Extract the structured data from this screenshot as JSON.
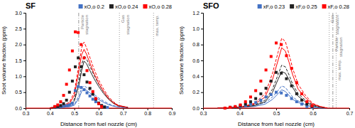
{
  "chart_data": [
    {
      "type": "line",
      "title": "SF",
      "xlabel": "Distance from fuel nozzle (cm)",
      "ylabel": "Soot volume fraction (ppm)",
      "xlim": [
        0.3,
        0.9
      ],
      "ylim": [
        0,
        3.0
      ],
      "xticks": [
        0.3,
        0.4,
        0.5,
        0.6,
        0.7,
        0.8,
        0.9
      ],
      "yticks": [
        {
          "value": 0,
          "label": "0.0"
        },
        0.5,
        {
          "value": 1.0,
          "label": "1.0"
        },
        1.5,
        {
          "value": 2.0,
          "label": "2.0"
        },
        2.5,
        {
          "value": 3.0,
          "label": "3.0"
        }
      ],
      "grid": false,
      "legend": "upper right",
      "series": [
        {
          "name": "xO,o 0.2",
          "type": "scatter",
          "marker": "square",
          "color": "#4472C4",
          "x": [
            0.42,
            0.432,
            0.444,
            0.456,
            0.468,
            0.48,
            0.492,
            0.504,
            0.516,
            0.528,
            0.54,
            0.552,
            0.564,
            0.576,
            0.588,
            0.6,
            0.612,
            0.624,
            0.636
          ],
          "values": [
            0.02,
            0.03,
            0.04,
            0.06,
            0.08,
            0.1,
            0.15,
            0.55,
            0.68,
            0.65,
            0.58,
            0.48,
            0.38,
            0.28,
            0.2,
            0.14,
            0.08,
            0.04,
            0.02
          ]
        },
        {
          "type": "line",
          "line_style": "dashed",
          "color": "#4472C4",
          "x": [
            0.4,
            0.44,
            0.48,
            0.5,
            0.52,
            0.53,
            0.54,
            0.55,
            0.56,
            0.58,
            0.6,
            0.62,
            0.64,
            0.66,
            0.68,
            0.72
          ],
          "values": [
            0.01,
            0.02,
            0.05,
            0.12,
            0.4,
            0.62,
            0.7,
            0.65,
            0.58,
            0.44,
            0.32,
            0.22,
            0.14,
            0.08,
            0.04,
            0.01
          ]
        },
        {
          "type": "line",
          "line_style": "solid",
          "color": "#4472C4",
          "x": [
            0.4,
            0.44,
            0.48,
            0.5,
            0.52,
            0.53,
            0.54,
            0.55,
            0.56,
            0.58,
            0.6,
            0.62,
            0.64,
            0.66,
            0.68,
            0.72
          ],
          "values": [
            0.01,
            0.02,
            0.04,
            0.09,
            0.32,
            0.52,
            0.6,
            0.56,
            0.5,
            0.38,
            0.27,
            0.18,
            0.11,
            0.06,
            0.03,
            0.01
          ]
        },
        {
          "name": "xO,o 0.24",
          "type": "scatter",
          "marker": "square",
          "color": "#222222",
          "x": [
            0.42,
            0.432,
            0.444,
            0.456,
            0.468,
            0.48,
            0.492,
            0.504,
            0.516,
            0.528,
            0.54,
            0.552,
            0.564,
            0.576,
            0.588,
            0.6,
            0.612,
            0.624
          ],
          "values": [
            0.03,
            0.05,
            0.08,
            0.14,
            0.25,
            0.5,
            0.85,
            1.3,
            1.58,
            1.3,
            1.05,
            0.82,
            0.62,
            0.44,
            0.28,
            0.16,
            0.08,
            0.03
          ]
        },
        {
          "type": "line",
          "line_style": "dashed",
          "color": "#222222",
          "x": [
            0.4,
            0.44,
            0.48,
            0.5,
            0.52,
            0.53,
            0.54,
            0.55,
            0.56,
            0.58,
            0.6,
            0.62,
            0.64,
            0.66,
            0.68,
            0.72
          ],
          "values": [
            0.01,
            0.03,
            0.1,
            0.28,
            0.9,
            1.35,
            1.65,
            1.55,
            1.38,
            1.05,
            0.76,
            0.52,
            0.32,
            0.18,
            0.08,
            0.02
          ]
        },
        {
          "type": "line",
          "line_style": "solid",
          "color": "#222222",
          "x": [
            0.4,
            0.44,
            0.48,
            0.5,
            0.52,
            0.53,
            0.54,
            0.55,
            0.56,
            0.58,
            0.6,
            0.62,
            0.64,
            0.66,
            0.68,
            0.72
          ],
          "values": [
            0.01,
            0.02,
            0.08,
            0.22,
            0.75,
            1.18,
            1.48,
            1.4,
            1.24,
            0.94,
            0.68,
            0.46,
            0.28,
            0.15,
            0.07,
            0.02
          ]
        },
        {
          "name": "xO,o 0.28",
          "type": "scatter",
          "marker": "square",
          "color": "#FF0000",
          "x": [
            0.42,
            0.432,
            0.444,
            0.456,
            0.468,
            0.48,
            0.492,
            0.504,
            0.516,
            0.528,
            0.54,
            0.552,
            0.564,
            0.576,
            0.588,
            0.6,
            0.612
          ],
          "values": [
            0.05,
            0.1,
            0.2,
            0.4,
            0.75,
            1.2,
            1.8,
            2.4,
            2.38,
            2.0,
            1.58,
            1.18,
            0.8,
            0.52,
            0.3,
            0.14,
            0.05
          ]
        },
        {
          "type": "line",
          "line_style": "dashed",
          "color": "#FF0000",
          "x": [
            0.4,
            0.44,
            0.48,
            0.5,
            0.52,
            0.53,
            0.54,
            0.55,
            0.56,
            0.58,
            0.6,
            0.62,
            0.64,
            0.66,
            0.68,
            0.72
          ],
          "values": [
            0.01,
            0.05,
            0.18,
            0.5,
            1.42,
            1.9,
            2.08,
            1.9,
            1.68,
            1.24,
            0.88,
            0.6,
            0.36,
            0.2,
            0.09,
            0.02
          ]
        },
        {
          "type": "line",
          "line_style": "solid",
          "color": "#FF0000",
          "x": [
            0.4,
            0.44,
            0.48,
            0.5,
            0.52,
            0.53,
            0.54,
            0.55,
            0.56,
            0.58,
            0.6,
            0.62,
            0.64,
            0.66,
            0.68,
            0.72
          ],
          "values": [
            0.01,
            0.04,
            0.14,
            0.4,
            1.22,
            1.68,
            1.85,
            1.7,
            1.5,
            1.1,
            0.78,
            0.52,
            0.3,
            0.16,
            0.07,
            0.02
          ]
        }
      ],
      "annotations": [
        {
          "x": 0.518,
          "text": "Particle\nstagnation",
          "line_style": "dashdot"
        },
        {
          "x": 0.685,
          "text": "Gas\nstagnation",
          "line_style": "dotted"
        },
        {
          "x": 0.825,
          "text": "max. temp.",
          "line_style": "dotted"
        }
      ],
      "reference_lines": [
        {
          "y": 0,
          "color": "#FF0000"
        }
      ]
    },
    {
      "type": "line",
      "title": "SFO",
      "xlabel": "Distance from fuel nozzle (cm)",
      "ylabel": "Soot volume fraction (ppm)",
      "xlim": [
        0.3,
        0.7
      ],
      "ylim": [
        0,
        1.2
      ],
      "xticks": [
        0.3,
        0.4,
        0.5,
        0.6,
        0.7
      ],
      "yticks": [
        {
          "value": 0,
          "label": "0.0"
        },
        0.2,
        0.4,
        0.6,
        0.8,
        {
          "value": 1.0,
          "label": "1.0"
        },
        1.2
      ],
      "grid": false,
      "legend": "upper right",
      "series": [
        {
          "name": "xF,o 0.23",
          "type": "scatter",
          "marker": "square",
          "color": "#4472C4",
          "x": [
            0.36,
            0.374,
            0.388,
            0.402,
            0.416,
            0.43,
            0.444,
            0.458,
            0.472,
            0.486,
            0.5,
            0.514,
            0.528,
            0.542,
            0.556,
            0.57,
            0.584,
            0.598
          ],
          "values": [
            0.0,
            0.01,
            0.01,
            0.02,
            0.03,
            0.05,
            0.07,
            0.1,
            0.14,
            0.17,
            0.2,
            0.19,
            0.16,
            0.12,
            0.08,
            0.05,
            0.02,
            0.01
          ]
        },
        {
          "type": "line",
          "line_style": "dashed",
          "color": "#4472C4",
          "x": [
            0.34,
            0.4,
            0.44,
            0.47,
            0.49,
            0.505,
            0.515,
            0.525,
            0.535,
            0.545,
            0.56,
            0.58,
            0.6,
            0.62,
            0.64
          ],
          "values": [
            0.0,
            0.01,
            0.03,
            0.07,
            0.14,
            0.22,
            0.28,
            0.26,
            0.2,
            0.14,
            0.09,
            0.05,
            0.02,
            0.01,
            0.0
          ]
        },
        {
          "type": "line",
          "line_style": "solid",
          "color": "#4472C4",
          "x": [
            0.34,
            0.4,
            0.44,
            0.47,
            0.49,
            0.505,
            0.515,
            0.525,
            0.535,
            0.545,
            0.56,
            0.58,
            0.6,
            0.62,
            0.64
          ],
          "values": [
            0.0,
            0.01,
            0.02,
            0.05,
            0.11,
            0.18,
            0.23,
            0.21,
            0.16,
            0.11,
            0.07,
            0.04,
            0.01,
            0.0,
            0.0
          ]
        },
        {
          "name": "xF,o 0.25",
          "type": "scatter",
          "marker": "square",
          "color": "#222222",
          "x": [
            0.36,
            0.374,
            0.388,
            0.402,
            0.416,
            0.43,
            0.444,
            0.458,
            0.472,
            0.486,
            0.5,
            0.514,
            0.528,
            0.542,
            0.556,
            0.57,
            0.584,
            0.598
          ],
          "values": [
            0.0,
            0.01,
            0.01,
            0.03,
            0.05,
            0.08,
            0.12,
            0.18,
            0.25,
            0.34,
            0.45,
            0.44,
            0.37,
            0.28,
            0.18,
            0.1,
            0.05,
            0.02
          ]
        },
        {
          "type": "line",
          "line_style": "dashed",
          "color": "#222222",
          "x": [
            0.34,
            0.4,
            0.44,
            0.47,
            0.49,
            0.505,
            0.515,
            0.525,
            0.535,
            0.545,
            0.56,
            0.58,
            0.6,
            0.62,
            0.64
          ],
          "values": [
            0.0,
            0.01,
            0.04,
            0.1,
            0.24,
            0.42,
            0.54,
            0.52,
            0.42,
            0.3,
            0.18,
            0.1,
            0.04,
            0.02,
            0.0
          ]
        },
        {
          "type": "line",
          "line_style": "solid",
          "color": "#222222",
          "x": [
            0.34,
            0.4,
            0.44,
            0.47,
            0.49,
            0.505,
            0.515,
            0.525,
            0.535,
            0.545,
            0.56,
            0.58,
            0.6,
            0.62,
            0.64
          ],
          "values": [
            0.0,
            0.01,
            0.03,
            0.08,
            0.2,
            0.36,
            0.46,
            0.44,
            0.36,
            0.26,
            0.15,
            0.08,
            0.03,
            0.01,
            0.0
          ]
        },
        {
          "name": "xF,o 0.28",
          "type": "scatter",
          "marker": "square",
          "color": "#FF0000",
          "x": [
            0.36,
            0.374,
            0.388,
            0.402,
            0.416,
            0.43,
            0.444,
            0.458,
            0.472,
            0.486,
            0.5,
            0.514,
            0.528,
            0.542,
            0.556,
            0.57,
            0.584,
            0.598
          ],
          "values": [
            0.0,
            0.01,
            0.02,
            0.04,
            0.08,
            0.14,
            0.22,
            0.34,
            0.48,
            0.65,
            0.82,
            0.8,
            0.66,
            0.5,
            0.32,
            0.18,
            0.08,
            0.03
          ]
        },
        {
          "type": "line",
          "line_style": "dashed",
          "color": "#FF0000",
          "x": [
            0.34,
            0.4,
            0.44,
            0.47,
            0.49,
            0.505,
            0.515,
            0.525,
            0.535,
            0.545,
            0.56,
            0.58,
            0.6,
            0.62,
            0.64
          ],
          "values": [
            0.0,
            0.01,
            0.06,
            0.18,
            0.44,
            0.7,
            0.88,
            0.84,
            0.68,
            0.5,
            0.3,
            0.16,
            0.06,
            0.02,
            0.0
          ]
        },
        {
          "type": "line",
          "line_style": "solid",
          "color": "#FF0000",
          "x": [
            0.34,
            0.4,
            0.44,
            0.47,
            0.49,
            0.505,
            0.515,
            0.525,
            0.535,
            0.545,
            0.56,
            0.58,
            0.6,
            0.62,
            0.64
          ],
          "values": [
            0.0,
            0.01,
            0.05,
            0.14,
            0.36,
            0.6,
            0.76,
            0.72,
            0.58,
            0.42,
            0.24,
            0.13,
            0.05,
            0.02,
            0.0
          ]
        }
      ],
      "annotations": [
        {
          "x": 0.655,
          "text": "Particle\nstagnation",
          "line_style": "dashdot"
        },
        {
          "x": 0.645,
          "text": "Gas\nstagnation",
          "line_style": "dotted"
        },
        {
          "x": 0.664,
          "text": "max. temp.",
          "line_style": "dotted"
        }
      ],
      "reference_lines": [
        {
          "y": 0,
          "color": "#FF0000"
        }
      ]
    }
  ]
}
